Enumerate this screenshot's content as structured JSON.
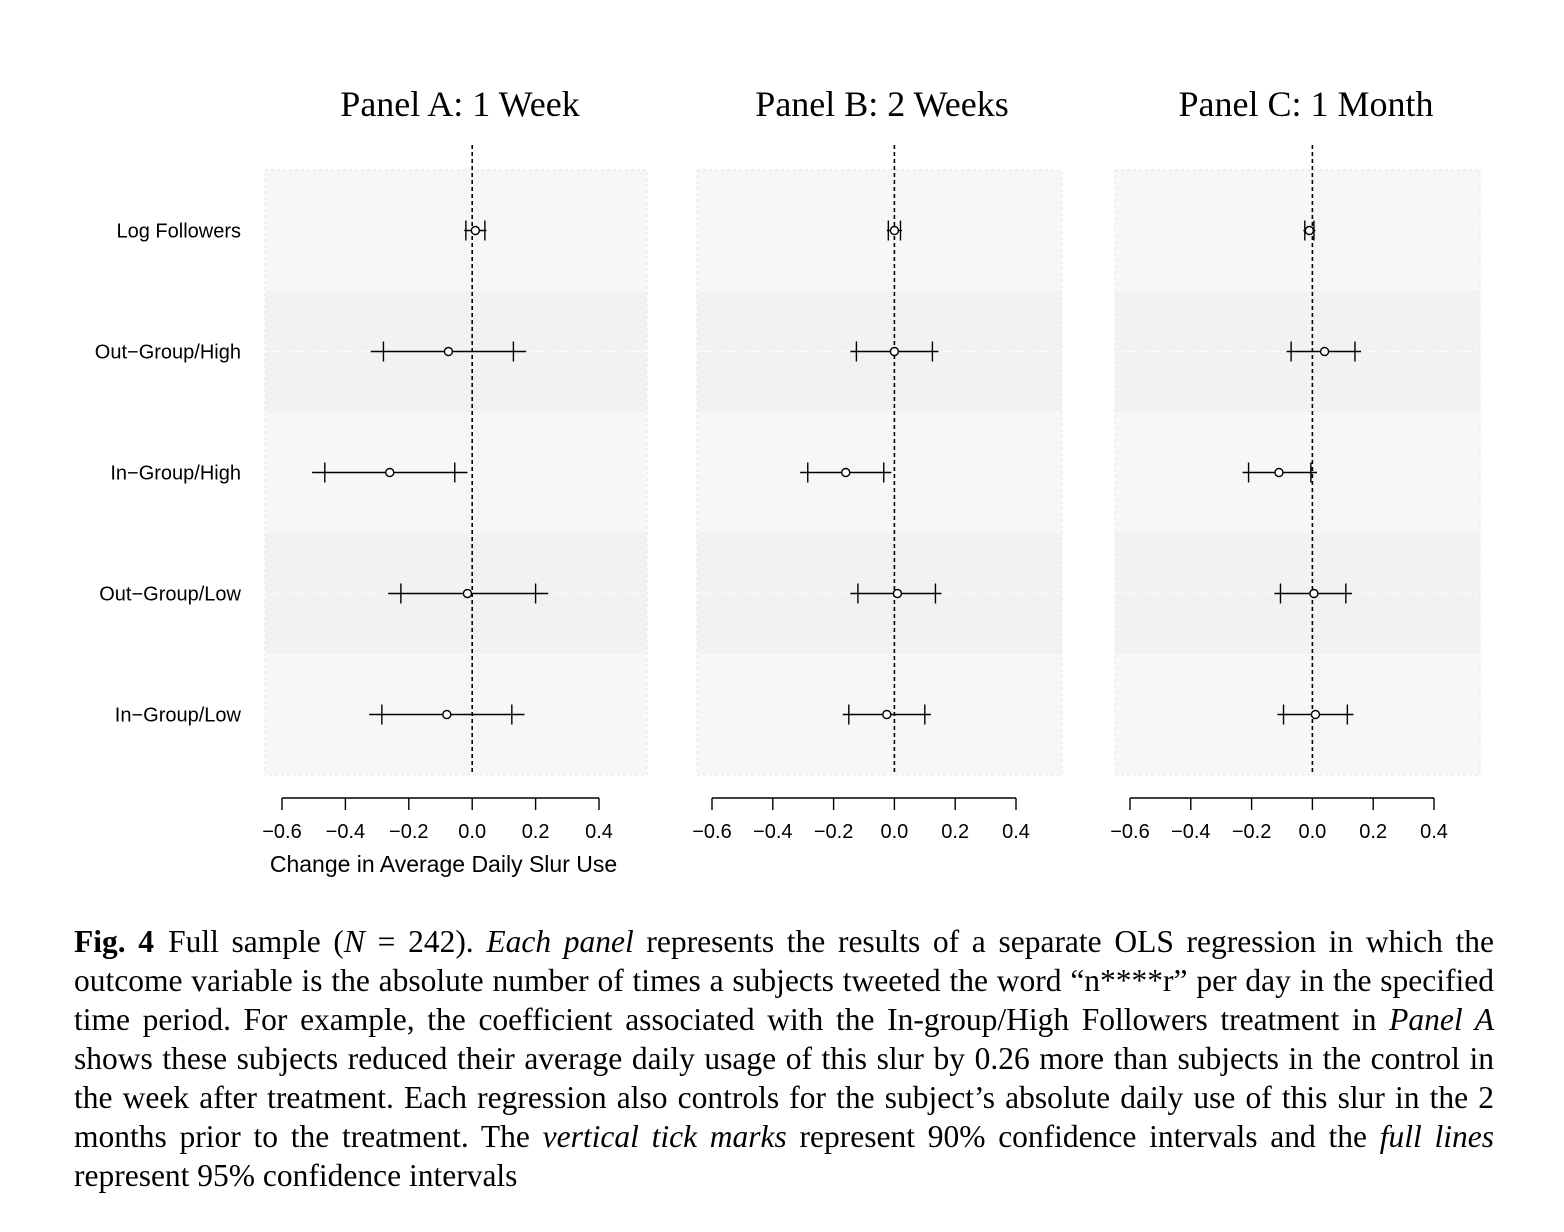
{
  "chart_data": [
    {
      "type": "coefficient_plot",
      "title": "Panel A: 1 Week",
      "xlabel": "Change in Average Daily Slur Use",
      "xlim": [
        -0.6,
        0.4
      ],
      "xticks": [
        -0.6,
        -0.4,
        -0.2,
        0.0,
        0.2,
        0.4
      ],
      "xtick_labels": [
        "−0.6",
        "−0.4",
        "−0.2",
        "0.0",
        "0.2",
        "0.4"
      ],
      "reference_line": 0.0,
      "rows": [
        {
          "label": "Log Followers",
          "estimate": 0.01,
          "ci90": [
            -0.02,
            0.04
          ],
          "ci95": [
            -0.025,
            0.045
          ]
        },
        {
          "label": "Out−Group/High",
          "estimate": -0.075,
          "ci90": [
            -0.28,
            0.13
          ],
          "ci95": [
            -0.32,
            0.17
          ]
        },
        {
          "label": "In−Group/High",
          "estimate": -0.26,
          "ci90": [
            -0.465,
            -0.055
          ],
          "ci95": [
            -0.505,
            -0.015
          ]
        },
        {
          "label": "Out−Group/Low",
          "estimate": -0.015,
          "ci90": [
            -0.225,
            0.2
          ],
          "ci95": [
            -0.265,
            0.24
          ]
        },
        {
          "label": "In−Group/Low",
          "estimate": -0.08,
          "ci90": [
            -0.285,
            0.125
          ],
          "ci95": [
            -0.325,
            0.165
          ]
        }
      ]
    },
    {
      "type": "coefficient_plot",
      "title": "Panel B: 2 Weeks",
      "xlabel": "",
      "xlim": [
        -0.6,
        0.4
      ],
      "xticks": [
        -0.6,
        -0.4,
        -0.2,
        0.0,
        0.2,
        0.4
      ],
      "xtick_labels": [
        "−0.6",
        "−0.4",
        "−0.2",
        "0.0",
        "0.2",
        "0.4"
      ],
      "reference_line": 0.0,
      "rows": [
        {
          "label": "Log Followers",
          "estimate": 0.0,
          "ci90": [
            -0.02,
            0.02
          ],
          "ci95": [
            -0.025,
            0.025
          ]
        },
        {
          "label": "Out−Group/High",
          "estimate": 0.0,
          "ci90": [
            -0.125,
            0.125
          ],
          "ci95": [
            -0.145,
            0.145
          ]
        },
        {
          "label": "In−Group/High",
          "estimate": -0.16,
          "ci90": [
            -0.285,
            -0.035
          ],
          "ci95": [
            -0.31,
            -0.01
          ]
        },
        {
          "label": "Out−Group/Low",
          "estimate": 0.01,
          "ci90": [
            -0.12,
            0.135
          ],
          "ci95": [
            -0.145,
            0.155
          ]
        },
        {
          "label": "In−Group/Low",
          "estimate": -0.025,
          "ci90": [
            -0.15,
            0.1
          ],
          "ci95": [
            -0.17,
            0.12
          ]
        }
      ]
    },
    {
      "type": "coefficient_plot",
      "title": "Panel C: 1 Month",
      "xlabel": "",
      "xlim": [
        -0.6,
        0.4
      ],
      "xticks": [
        -0.6,
        -0.4,
        -0.2,
        0.0,
        0.2,
        0.4
      ],
      "xtick_labels": [
        "−0.6",
        "−0.4",
        "−0.2",
        "0.0",
        "0.2",
        "0.4"
      ],
      "reference_line": 0.0,
      "rows": [
        {
          "label": "Log Followers",
          "estimate": -0.01,
          "ci90": [
            -0.025,
            0.005
          ],
          "ci95": [
            -0.03,
            0.01
          ]
        },
        {
          "label": "Out−Group/High",
          "estimate": 0.04,
          "ci90": [
            -0.07,
            0.14
          ],
          "ci95": [
            -0.085,
            0.16
          ]
        },
        {
          "label": "In−Group/High",
          "estimate": -0.11,
          "ci90": [
            -0.21,
            -0.005
          ],
          "ci95": [
            -0.23,
            0.015
          ]
        },
        {
          "label": "Out−Group/Low",
          "estimate": 0.005,
          "ci90": [
            -0.105,
            0.11
          ],
          "ci95": [
            -0.125,
            0.13
          ]
        },
        {
          "label": "In−Group/Low",
          "estimate": 0.01,
          "ci90": [
            -0.095,
            0.115
          ],
          "ci95": [
            -0.115,
            0.135
          ]
        }
      ]
    }
  ],
  "caption": {
    "label": "Fig. 4",
    "segments": [
      {
        "text": "Full sample (",
        "italic": false
      },
      {
        "text": "N",
        "italic": true
      },
      {
        "text": " = 242). ",
        "italic": false
      },
      {
        "text": "Each panel",
        "italic": true
      },
      {
        "text": " represents the results of a separate OLS regression in which the outcome variable is the absolute number of times a subjects tweeted the word “n****r” per day in the specified time period. For example, the coefficient associated with the In-group/High Followers treatment in ",
        "italic": false
      },
      {
        "text": "Panel A",
        "italic": true
      },
      {
        "text": " shows these subjects reduced their average daily usage of this slur by 0.26 more than subjects in the control in the week after treatment. Each regression also controls for the subject’s absolute daily use of this slur in the 2 months prior to the treatment. The ",
        "italic": false
      },
      {
        "text": "vertical tick marks",
        "italic": true
      },
      {
        "text": " represent 90% confidence intervals and the ",
        "italic": false
      },
      {
        "text": "full lines",
        "italic": true
      },
      {
        "text": " represent 95% confidence intervals",
        "italic": false
      }
    ]
  }
}
